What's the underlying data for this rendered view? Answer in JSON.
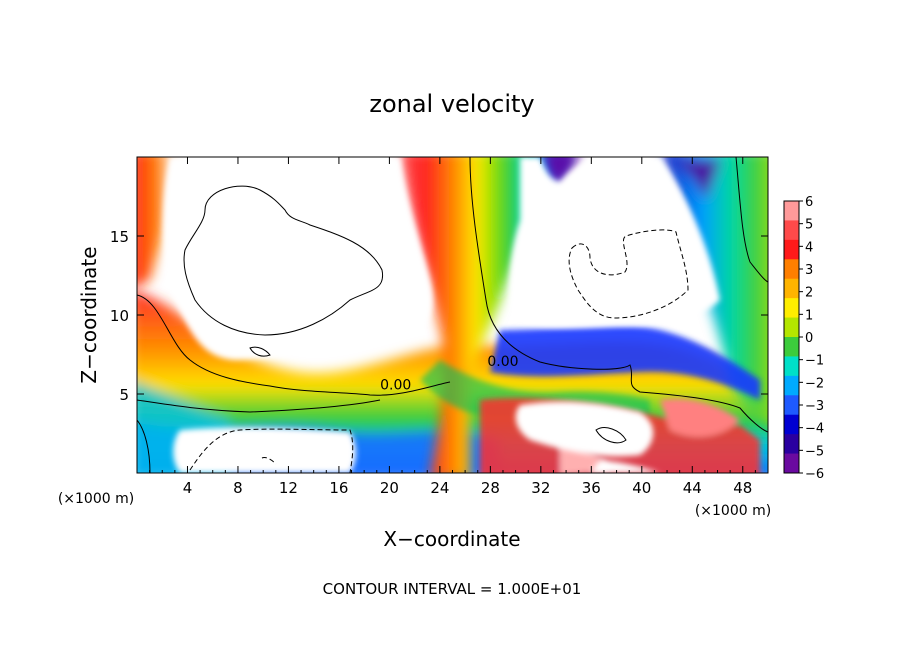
{
  "chart_data": {
    "type": "heatmap",
    "title": "zonal velocity",
    "xlabel": "X−coordinate",
    "ylabel": "Z−coordinate",
    "x_unit_left": "(×1000 m)",
    "x_unit_right": "(×1000 m)",
    "footer": "CONTOUR INTERVAL = 1.000E+01",
    "xlim": [
      0,
      50
    ],
    "ylim": [
      0,
      20
    ],
    "x_ticks": [
      4,
      8,
      12,
      16,
      20,
      24,
      28,
      32,
      36,
      40,
      44,
      48
    ],
    "y_ticks": [
      5,
      10,
      15
    ],
    "colorbar": {
      "levels": [
        6,
        5,
        4,
        3,
        2,
        1,
        0,
        -1,
        -2,
        -3,
        -4,
        -5,
        -6
      ],
      "labels": [
        "6",
        "5",
        "4",
        "3",
        "2",
        "1",
        "0",
        "−1",
        "−2",
        "−3",
        "−4",
        "−5",
        "−6"
      ],
      "colors": [
        "#ff9a9a",
        "#ff4a4a",
        "#ff1a1a",
        "#ff7f00",
        "#ffb400",
        "#ffee00",
        "#b4e600",
        "#3ccc3c",
        "#00e0c8",
        "#00aaff",
        "#1e5aff",
        "#0000d2",
        "#2a00a0",
        "#6a0aa0"
      ]
    },
    "contour_labels": [
      {
        "text": "0.00",
        "x": 29,
        "y": 6.9
      },
      {
        "text": "0.00",
        "x": 20.5,
        "y": 5.4
      }
    ]
  }
}
